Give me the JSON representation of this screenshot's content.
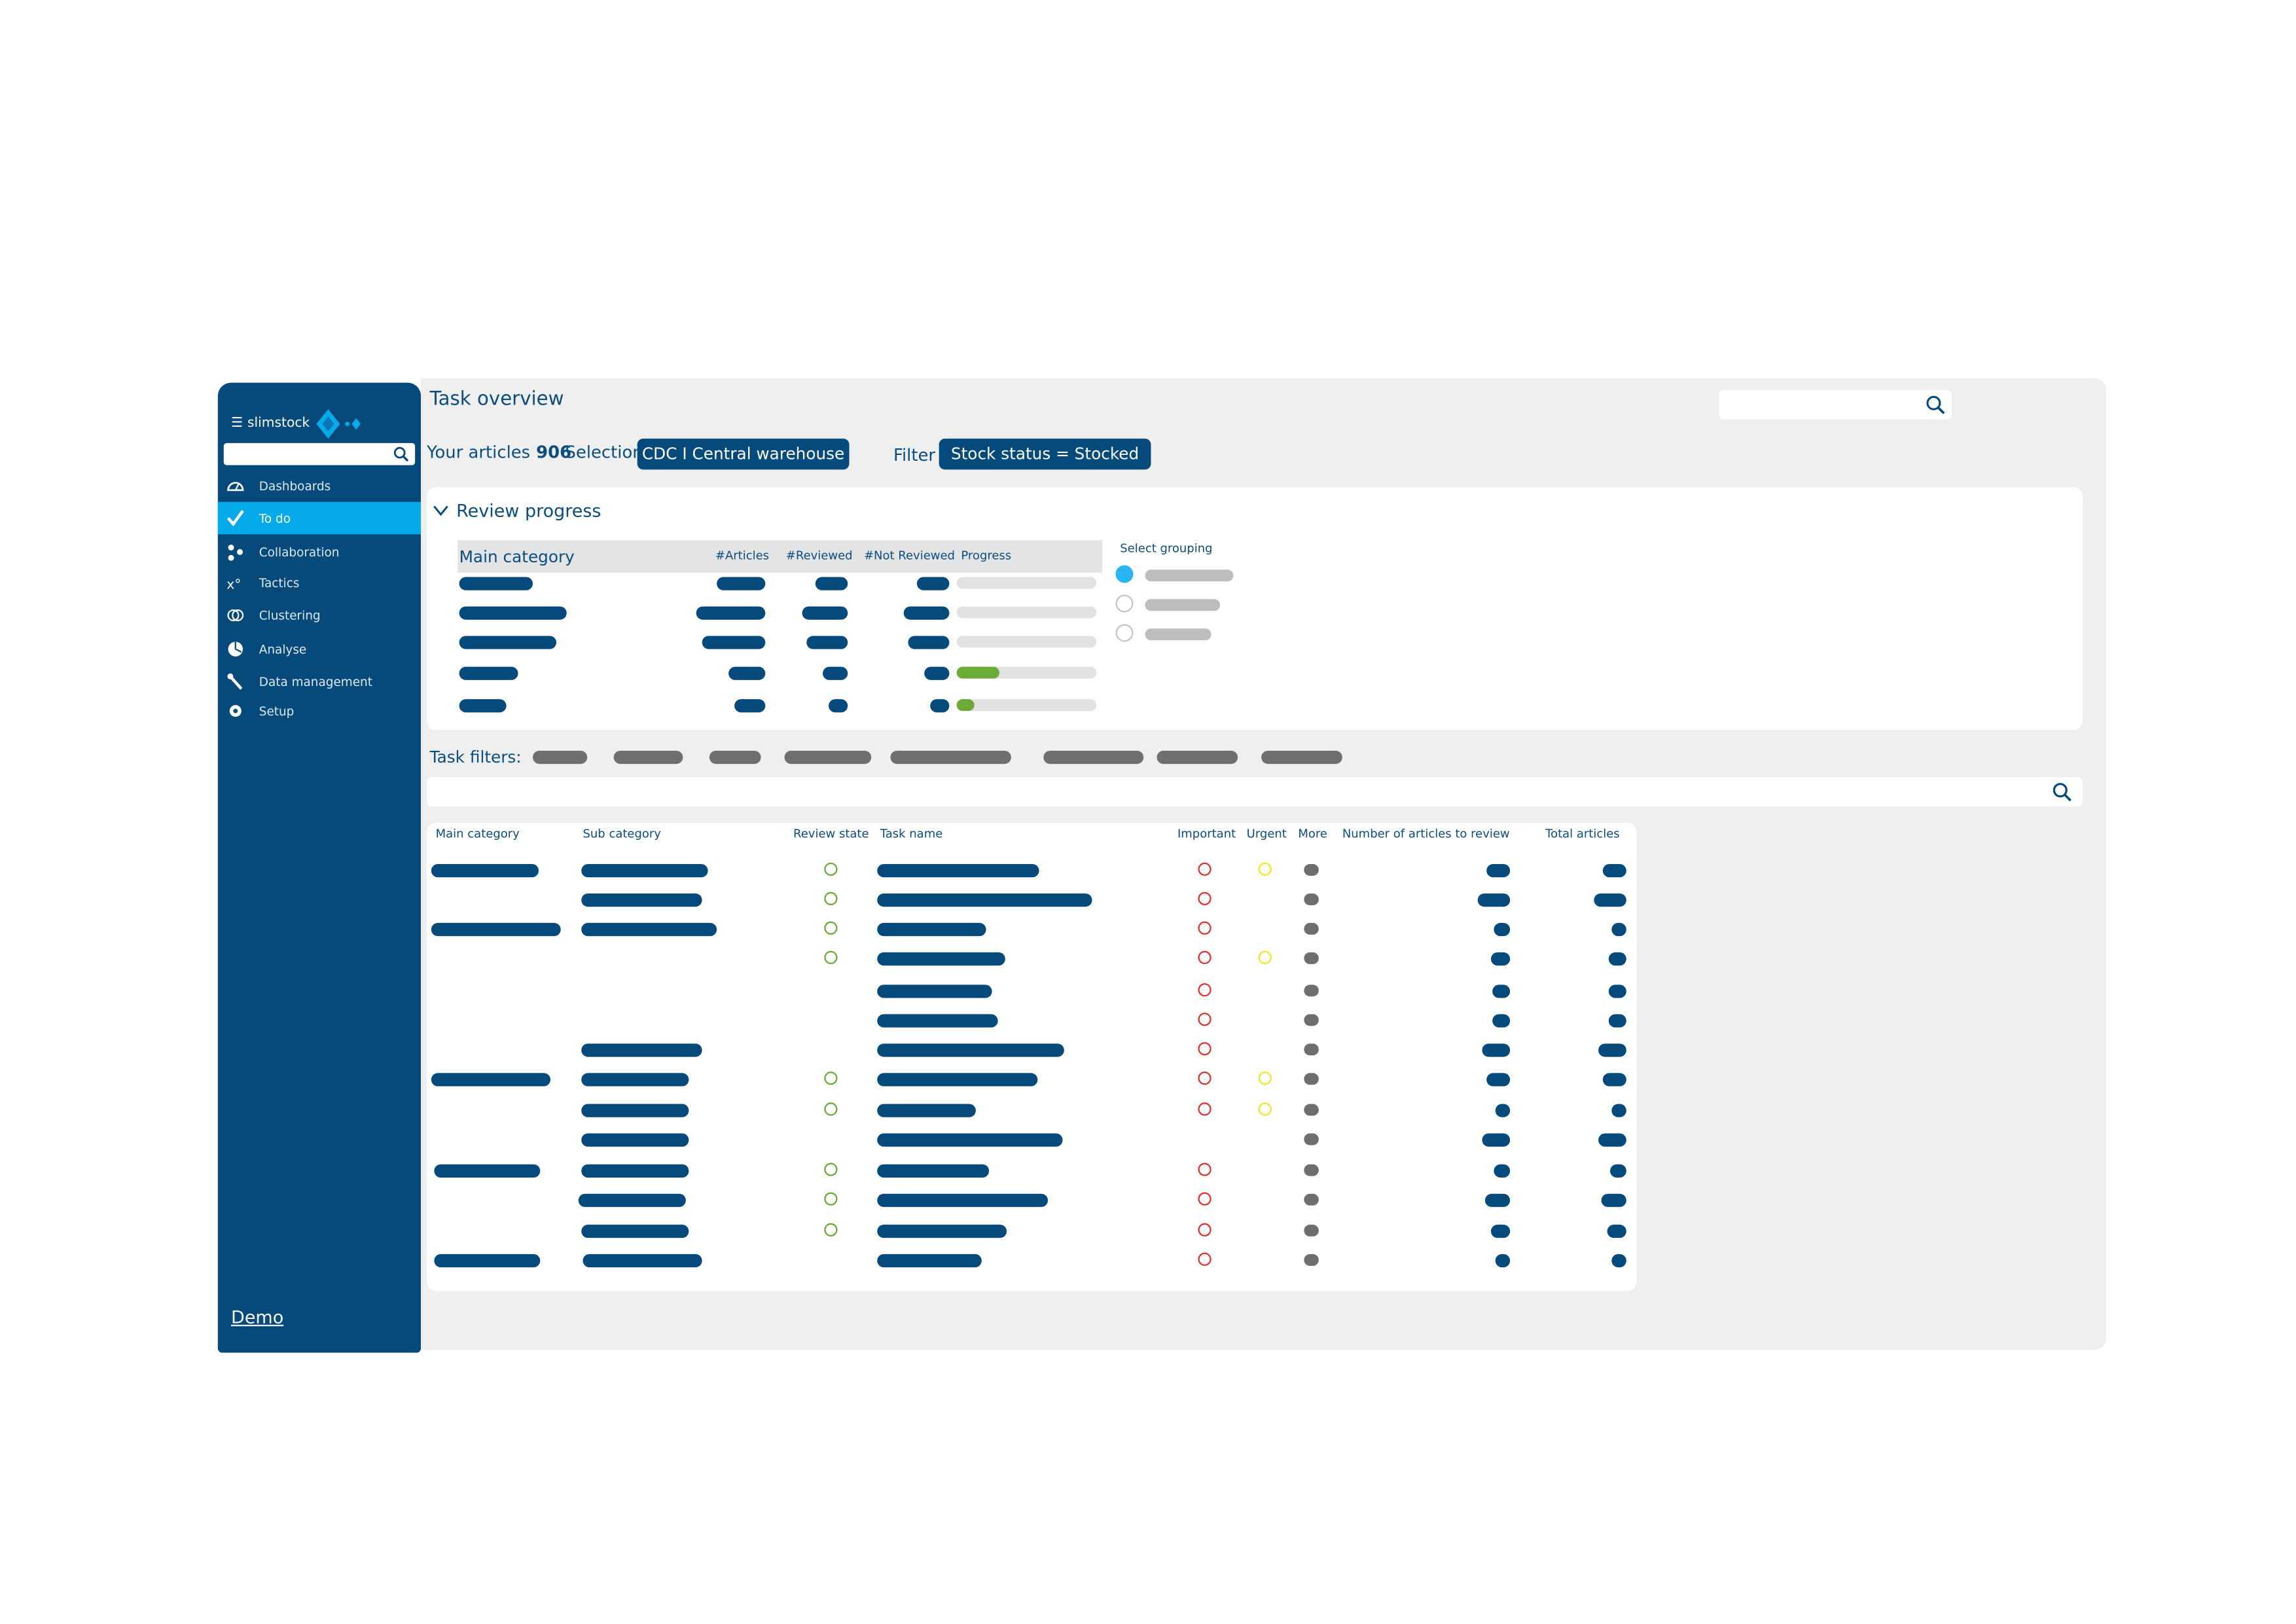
{
  "app": {
    "brand": "slimstock",
    "title": "Task overview"
  },
  "colors": {
    "navy": "#054a7b",
    "active": "#06aae8",
    "success": "#6aaa35",
    "important": "#e03131",
    "urgent": "#f0e62a",
    "more": "#6e6e6e"
  },
  "sidebar": {
    "search_placeholder": "",
    "items": [
      {
        "label": "Dashboards",
        "icon": "gauge-icon",
        "active": false
      },
      {
        "label": "To do",
        "icon": "check-icon",
        "active": true
      },
      {
        "label": "Collaboration",
        "icon": "share-icon",
        "active": false
      },
      {
        "label": "Tactics",
        "icon": "tactics-icon",
        "active": false
      },
      {
        "label": "Clustering",
        "icon": "rings-icon",
        "active": false
      },
      {
        "label": "Analyse",
        "icon": "pie-chart-icon",
        "active": false
      },
      {
        "label": "Data management",
        "icon": "wrench-icon",
        "active": false
      },
      {
        "label": "Setup",
        "icon": "gear-icon",
        "active": false
      }
    ],
    "footer_link": "Demo"
  },
  "header": {
    "articles_label": "Your articles",
    "articles_count": "906",
    "selection_label": "Selection",
    "selection_value": "CDC I Central warehouse",
    "filter_label": "Filter",
    "filter_value": "Stock status = Stocked",
    "search_placeholder": ""
  },
  "review_progress": {
    "title": "Review progress",
    "columns": [
      "Main category",
      "#Articles",
      "#Reviewed",
      "#Not Reviewed",
      "Progress"
    ],
    "progress_percent": [
      0,
      0,
      0,
      30,
      13
    ],
    "select_grouping_label": "Select grouping",
    "grouping_selected": 0
  },
  "task_filters": {
    "label": "Task filters:",
    "search_placeholder": ""
  },
  "tasks": {
    "columns": [
      "Main category",
      "Sub category",
      "Review state",
      "Task name",
      "Important",
      "Urgent",
      "More",
      "Number of articles to review",
      "Total articles"
    ],
    "rows": [
      {
        "main": true,
        "sub": true,
        "reviewed": true,
        "important": true,
        "urgent": true
      },
      {
        "main": false,
        "sub": true,
        "reviewed": true,
        "important": true,
        "urgent": false
      },
      {
        "main": true,
        "sub": true,
        "reviewed": true,
        "important": true,
        "urgent": false
      },
      {
        "main": false,
        "sub": false,
        "reviewed": true,
        "important": true,
        "urgent": true
      },
      {
        "main": false,
        "sub": false,
        "reviewed": false,
        "important": true,
        "urgent": false
      },
      {
        "main": false,
        "sub": false,
        "reviewed": false,
        "important": true,
        "urgent": false
      },
      {
        "main": false,
        "sub": true,
        "reviewed": false,
        "important": true,
        "urgent": false
      },
      {
        "main": true,
        "sub": true,
        "reviewed": true,
        "important": true,
        "urgent": true
      },
      {
        "main": false,
        "sub": true,
        "reviewed": true,
        "important": true,
        "urgent": true
      },
      {
        "main": false,
        "sub": true,
        "reviewed": false,
        "important": false,
        "urgent": false
      },
      {
        "main": true,
        "sub": true,
        "reviewed": true,
        "important": true,
        "urgent": false
      },
      {
        "main": false,
        "sub": true,
        "reviewed": true,
        "important": true,
        "urgent": false
      },
      {
        "main": false,
        "sub": true,
        "reviewed": true,
        "important": true,
        "urgent": false
      },
      {
        "main": true,
        "sub": true,
        "reviewed": false,
        "important": true,
        "urgent": false
      }
    ]
  }
}
